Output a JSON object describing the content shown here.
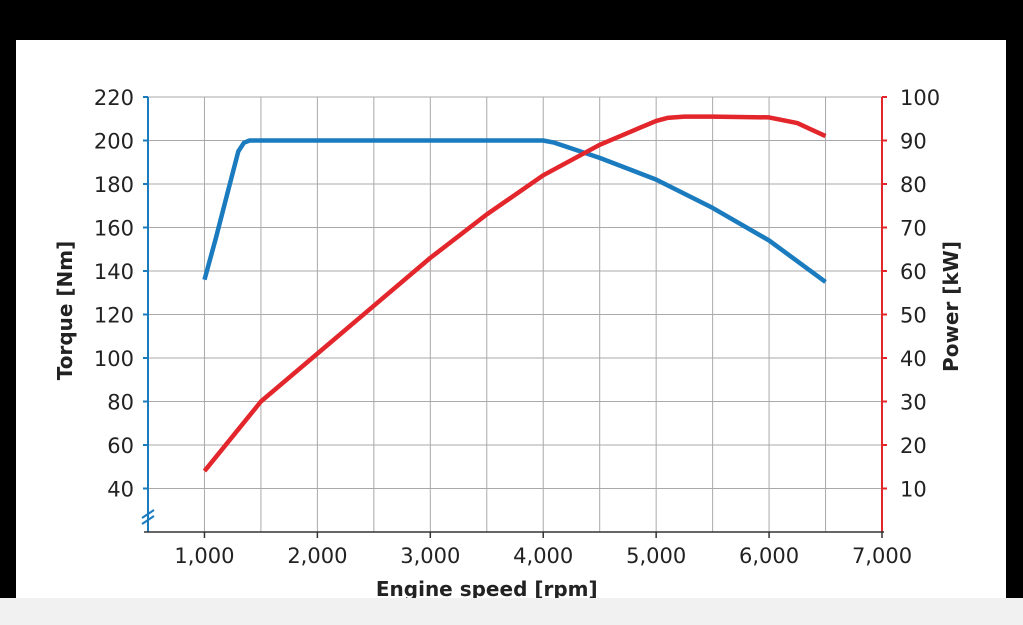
{
  "chart_data": {
    "type": "line",
    "xlabel": "Engine speed [rpm]",
    "ylabel_left": "Torque [Nm]",
    "ylabel_right": "Power [kW]",
    "x_ticks": [
      1000,
      2000,
      3000,
      4000,
      5000,
      6000,
      7000
    ],
    "x_tick_labels": [
      "1,000",
      "2,000",
      "3,000",
      "4,000",
      "5,000",
      "6,000",
      "7,000"
    ],
    "xlim": [
      500,
      7000
    ],
    "y_left_ticks": [
      40,
      60,
      80,
      100,
      120,
      140,
      160,
      180,
      200,
      220
    ],
    "y_left_lim": [
      20,
      220
    ],
    "y_right_ticks": [
      10,
      20,
      30,
      40,
      50,
      60,
      70,
      80,
      90,
      100
    ],
    "y_right_lim": [
      0,
      100
    ],
    "grid": true,
    "series": [
      {
        "name": "Torque",
        "axis": "left",
        "color": "#1a7bbf",
        "x": [
          1000,
          1100,
          1200,
          1300,
          1350,
          1400,
          1500,
          2000,
          3000,
          3500,
          4000,
          4100,
          4500,
          5000,
          5500,
          6000,
          6500
        ],
        "y": [
          136,
          155,
          175,
          195,
          199,
          200,
          200,
          200,
          200,
          200,
          200,
          199,
          192,
          182,
          169,
          154,
          135
        ]
      },
      {
        "name": "Power",
        "axis": "right",
        "color": "#e3262b",
        "x": [
          1000,
          1250,
          1500,
          2000,
          2500,
          3000,
          3500,
          4000,
          4500,
          5000,
          5100,
          5250,
          5500,
          6000,
          6250,
          6500
        ],
        "y": [
          14,
          22,
          30,
          41,
          52,
          63,
          73,
          82,
          89,
          94.5,
          95.2,
          95.5,
          95.5,
          95.3,
          94,
          91
        ]
      }
    ]
  }
}
